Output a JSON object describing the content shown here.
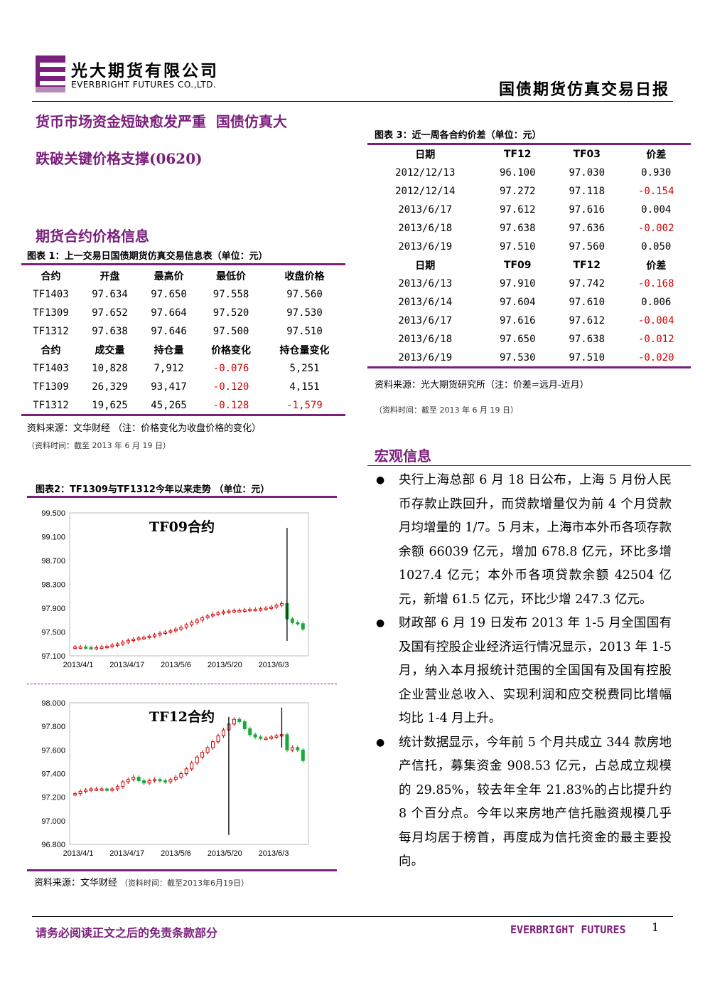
{
  "header": {
    "company_cn": "光大期货有限公司",
    "company_en": "EVERBRIGHT FUTURES CO.,LTD.",
    "report_title": "国债期货仿真交易日报"
  },
  "headline": {
    "line1": "货币市场资金短缺愈发严重  国债仿真大",
    "line2": "跌破关键价格支撑(0620)"
  },
  "section_futures": {
    "title": "期货合约价格信息",
    "table1_caption": "图表 1：上一交易日国债期货仿真交易信息表（单位：元）",
    "table1": {
      "headers_a": [
        "合约",
        "开盘",
        "最高价",
        "最低价",
        "收盘价格"
      ],
      "rows_a": [
        [
          "TF1403",
          "97.634",
          "97.650",
          "97.558",
          "97.560"
        ],
        [
          "TF1309",
          "97.652",
          "97.664",
          "97.520",
          "97.530"
        ],
        [
          "TF1312",
          "97.638",
          "97.646",
          "97.500",
          "97.510"
        ]
      ],
      "headers_b": [
        "合约",
        "成交量",
        "持仓量",
        "价格变化",
        "持仓量变化"
      ],
      "rows_b": [
        [
          "TF1403",
          "10,828",
          "7,912",
          "-0.076",
          "5,251"
        ],
        [
          "TF1309",
          "26,329",
          "93,417",
          "-0.120",
          "4,151"
        ],
        [
          "TF1312",
          "19,625",
          "45,265",
          "-0.128",
          "-1,579"
        ]
      ]
    },
    "table1_source": "资料来源：文华财经  （注：价格变化为收盘价格的变化）",
    "table1_time": "（资料时间：截至 2013 年 6 月 19 日）"
  },
  "chart_section": {
    "caption": "图表2：TF1309与TF1312今年以来走势 （单位：元）",
    "source": "资料来源：文华财经",
    "source_time": "（资料时间：截至2013年6月19日）"
  },
  "chart_data": [
    {
      "type": "candlestick",
      "title": "TF09合约",
      "ylim": [
        97.1,
        99.5
      ],
      "yticks": [
        "99.500",
        "99.100",
        "98.700",
        "98.300",
        "97.900",
        "97.500",
        "97.100"
      ],
      "xticks": [
        "2013/4/1",
        "2013/4/17",
        "2013/5/6",
        "2013/5/20",
        "2013/6/3"
      ],
      "close": [
        97.25,
        97.25,
        97.24,
        97.23,
        97.24,
        97.25,
        97.26,
        97.28,
        97.3,
        97.33,
        97.36,
        97.38,
        97.4,
        97.41,
        97.43,
        97.45,
        97.48,
        97.5,
        97.52,
        97.55,
        97.58,
        97.62,
        97.66,
        97.7,
        97.74,
        97.77,
        97.8,
        97.82,
        97.84,
        97.85,
        97.86,
        97.86,
        97.87,
        97.88,
        97.88,
        97.89,
        97.9,
        97.92,
        97.95,
        97.98,
        97.72,
        97.66,
        97.64,
        97.55
      ],
      "spike": {
        "index": 40,
        "high": 99.25,
        "low": 97.35
      }
    },
    {
      "type": "candlestick",
      "title": "TF12合约",
      "ylim": [
        96.8,
        98.0
      ],
      "yticks": [
        "98.000",
        "97.800",
        "97.600",
        "97.400",
        "97.200",
        "97.000",
        "96.800"
      ],
      "xticks": [
        "2013/4/1",
        "2013/4/17",
        "2013/5/6",
        "2013/5/20",
        "2013/6/3"
      ],
      "close": [
        97.23,
        97.25,
        97.26,
        97.27,
        97.27,
        97.27,
        97.26,
        97.27,
        97.29,
        97.33,
        97.35,
        97.37,
        97.34,
        97.32,
        97.34,
        97.35,
        97.34,
        97.33,
        97.35,
        97.37,
        97.4,
        97.44,
        97.49,
        97.54,
        97.58,
        97.62,
        97.67,
        97.72,
        97.77,
        97.82,
        97.86,
        97.84,
        97.78,
        97.73,
        97.71,
        97.7,
        97.7,
        97.71,
        97.72,
        97.73,
        97.6,
        97.62,
        97.6,
        97.51
      ],
      "spike": {
        "index": 29,
        "high": 97.88,
        "low": 96.88
      },
      "spike2": {
        "index": 39,
        "high": 97.96,
        "low": 97.62
      }
    }
  ],
  "table3": {
    "caption": "图表 3：近一周各合约价差（单位：元）",
    "headers_a": [
      "日期",
      "TF12",
      "TF03",
      "价差"
    ],
    "rows_a": [
      [
        "2012/12/13",
        "96.100",
        "97.030",
        "0.930"
      ],
      [
        "2012/12/14",
        "97.272",
        "97.118",
        "-0.154"
      ],
      [
        "2013/6/17",
        "97.612",
        "97.616",
        "0.004"
      ],
      [
        "2013/6/18",
        "97.638",
        "97.636",
        "-0.002"
      ],
      [
        "2013/6/19",
        "97.510",
        "97.560",
        "0.050"
      ]
    ],
    "headers_b": [
      "日期",
      "TF09",
      "TF12",
      "价差"
    ],
    "rows_b": [
      [
        "2013/6/13",
        "97.910",
        "97.742",
        "-0.168"
      ],
      [
        "2013/6/14",
        "97.604",
        "97.610",
        "0.006"
      ],
      [
        "2013/6/17",
        "97.616",
        "97.612",
        "-0.004"
      ],
      [
        "2013/6/18",
        "97.650",
        "97.638",
        "-0.012"
      ],
      [
        "2013/6/19",
        "97.530",
        "97.510",
        "-0.020"
      ]
    ],
    "source": "资料来源：光大期货研究所（注：价差=远月-近月）",
    "time": "（资料时间：截至 2013 年 6 月 19 日）"
  },
  "macro": {
    "title": "宏观信息",
    "bullets": [
      "央行上海总部 6 月 18 日公布，上海 5 月份人民币存款止跌回升，而贷款增量仅为前 4 个月贷款月均增量的 1/7。5 月末，上海市本外币各项存款余额 66039 亿元，增加 678.8 亿元，环比多增 1027.4 亿元；本外币各项贷款余额 42504 亿元，新增 61.5 亿元，环比少增 247.3 亿元。",
      "财政部 6 月 19 日发布 2013 年 1-5 月全国国有及国有控股企业经济运行情况显示，2013 年 1-5 月，纳入本月报统计范围的全国国有及国有控股企业营业总收入、实现利润和应交税费同比增幅均比 1-4 月上升。",
      "统计数据显示，今年前 5 个月共成立 344 款房地产信托，募集资金 908.53 亿元，占总成立规模的 29.85%，较去年全年 21.83%的占比提升约 8 个百分点。今年以来房地产信托融资规模几乎每月均居于榜首，再度成为信托资金的最主要投向。"
    ]
  },
  "footer": {
    "disclaimer": "请务必阅读正文之后的免责条款部分",
    "brand": "EVERBRIGHT FUTURES",
    "page": "1"
  },
  "colors": {
    "brand_purple": "#7b1f7c",
    "negative_red": "#d00000",
    "candle_up": "#d00000",
    "candle_down": "#1aa83a"
  }
}
